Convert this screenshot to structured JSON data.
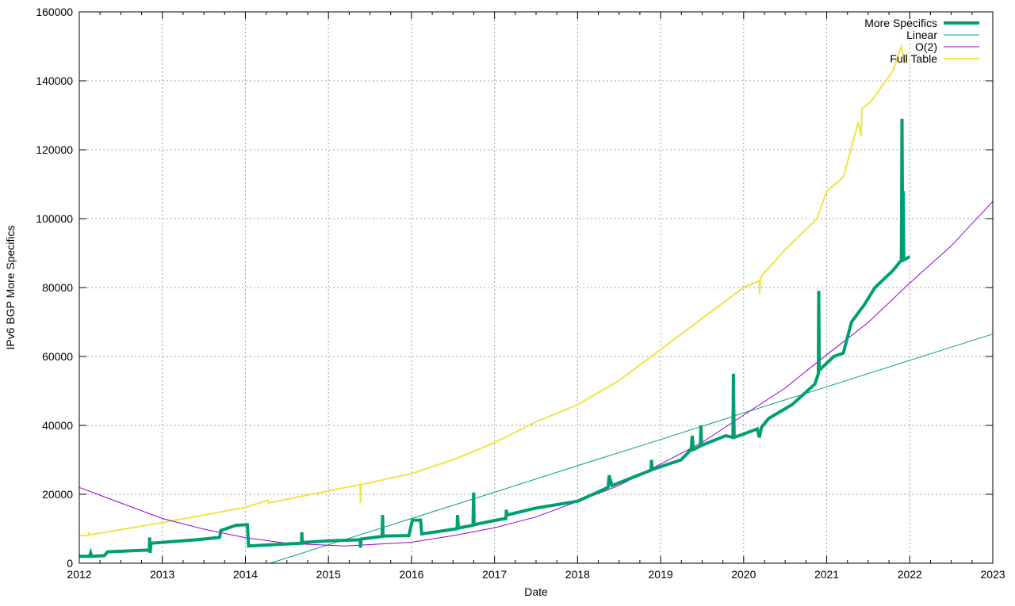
{
  "chart_data": {
    "type": "line",
    "title": "",
    "xlabel": "Date",
    "ylabel": "IPv6 BGP More Specifics",
    "xlim": [
      "2012-01-01",
      "2023-01-01"
    ],
    "ylim": [
      0,
      160000
    ],
    "x_ticks": [
      "2012",
      "2013",
      "2014",
      "2015",
      "2016",
      "2017",
      "2018",
      "2019",
      "2020",
      "2021",
      "2022",
      "2023"
    ],
    "y_ticks": [
      0,
      20000,
      40000,
      60000,
      80000,
      100000,
      120000,
      140000,
      160000
    ],
    "grid": true,
    "legend_position": "top-right",
    "series": [
      {
        "name": "More Specifics",
        "color": "#009e73",
        "style": "thick",
        "points": [
          [
            "2012-01-01",
            2000
          ],
          [
            "2012-02-15",
            2000
          ],
          [
            "2012-02-20",
            3000
          ],
          [
            "2012-02-25",
            2000
          ],
          [
            "2012-04-20",
            2200
          ],
          [
            "2012-05-05",
            3300
          ],
          [
            "2012-10-20",
            3800
          ],
          [
            "2012-11-05",
            3800
          ],
          [
            "2012-11-06",
            7500
          ],
          [
            "2012-11-08",
            3000
          ],
          [
            "2012-11-12",
            5800
          ],
          [
            "2013-06-01",
            6800
          ],
          [
            "2013-09-10",
            7500
          ],
          [
            "2013-09-15",
            9500
          ],
          [
            "2013-11-20",
            11000
          ],
          [
            "2014-01-10",
            11200
          ],
          [
            "2014-01-15",
            5000
          ],
          [
            "2014-06-01",
            5500
          ],
          [
            "2014-09-05",
            5800
          ],
          [
            "2014-09-06",
            9000
          ],
          [
            "2014-09-08",
            6000
          ],
          [
            "2015-01-01",
            6500
          ],
          [
            "2015-05-20",
            6800
          ],
          [
            "2015-05-22",
            4500
          ],
          [
            "2015-05-25",
            7000
          ],
          [
            "2015-08-25",
            7800
          ],
          [
            "2015-08-27",
            14000
          ],
          [
            "2015-08-29",
            7900
          ],
          [
            "2015-12-20",
            8000
          ],
          [
            "2016-01-05",
            12500
          ],
          [
            "2016-02-10",
            12500
          ],
          [
            "2016-02-15",
            8500
          ],
          [
            "2016-07-20",
            10000
          ],
          [
            "2016-07-22",
            14000
          ],
          [
            "2016-07-26",
            10200
          ],
          [
            "2016-09-28",
            11000
          ],
          [
            "2016-10-01",
            20500
          ],
          [
            "2016-10-03",
            11200
          ],
          [
            "2017-01-10",
            12500
          ],
          [
            "2017-02-20",
            13000
          ],
          [
            "2017-02-22",
            15500
          ],
          [
            "2017-02-25",
            14000
          ],
          [
            "2017-07-01",
            16000
          ],
          [
            "2018-01-01",
            18000
          ],
          [
            "2018-05-15",
            22000
          ],
          [
            "2018-05-20",
            25500
          ],
          [
            "2018-06-01",
            22500
          ],
          [
            "2018-11-20",
            27000
          ],
          [
            "2018-11-22",
            30000
          ],
          [
            "2018-11-25",
            27200
          ],
          [
            "2019-04-01",
            30000
          ],
          [
            "2019-05-15",
            33000
          ],
          [
            "2019-05-20",
            37000
          ],
          [
            "2019-05-25",
            33000
          ],
          [
            "2019-06-25",
            34000
          ],
          [
            "2019-06-27",
            40000
          ],
          [
            "2019-06-30",
            34200
          ],
          [
            "2019-10-15",
            37000
          ],
          [
            "2019-11-15",
            36500
          ],
          [
            "2019-11-17",
            55000
          ],
          [
            "2019-11-20",
            36500
          ],
          [
            "2020-01-01",
            37500
          ],
          [
            "2020-03-01",
            39000
          ],
          [
            "2020-03-10",
            36500
          ],
          [
            "2020-03-20",
            39500
          ],
          [
            "2020-04-20",
            42000
          ],
          [
            "2020-08-01",
            46000
          ],
          [
            "2020-11-10",
            52000
          ],
          [
            "2020-11-25",
            55000
          ],
          [
            "2020-11-27",
            79000
          ],
          [
            "2020-11-29",
            56000
          ],
          [
            "2021-02-01",
            60000
          ],
          [
            "2021-03-15",
            61000
          ],
          [
            "2021-04-20",
            70000
          ],
          [
            "2021-06-15",
            75000
          ],
          [
            "2021-08-01",
            80000
          ],
          [
            "2021-10-20",
            85000
          ],
          [
            "2021-11-25",
            88000
          ],
          [
            "2021-11-28",
            129000
          ],
          [
            "2021-12-01",
            88500
          ],
          [
            "2021-12-03",
            108000
          ],
          [
            "2021-12-06",
            88000
          ],
          [
            "2022-01-01",
            89000
          ]
        ]
      },
      {
        "name": "Linear",
        "color": "#009e73",
        "style": "thin",
        "points": [
          [
            "2014-04-20",
            0
          ],
          [
            "2015-01-01",
            5350
          ],
          [
            "2016-01-01",
            13000
          ],
          [
            "2017-01-01",
            20600
          ],
          [
            "2018-01-01",
            28300
          ],
          [
            "2019-01-01",
            35900
          ],
          [
            "2020-01-01",
            43600
          ],
          [
            "2021-01-01",
            51200
          ],
          [
            "2022-01-01",
            58900
          ],
          [
            "2023-01-01",
            66500
          ]
        ]
      },
      {
        "name": "O(2)",
        "color": "#9400d3",
        "style": "thin",
        "points": [
          [
            "2012-01-01",
            22000
          ],
          [
            "2012-07-01",
            17500
          ],
          [
            "2013-01-01",
            13000
          ],
          [
            "2013-07-01",
            9900
          ],
          [
            "2014-01-01",
            7400
          ],
          [
            "2014-07-01",
            5800
          ],
          [
            "2015-03-15",
            5000
          ],
          [
            "2016-01-01",
            6100
          ],
          [
            "2016-07-01",
            8000
          ],
          [
            "2017-01-01",
            10300
          ],
          [
            "2017-07-01",
            13400
          ],
          [
            "2018-01-01",
            17900
          ],
          [
            "2018-07-01",
            22500
          ],
          [
            "2019-01-01",
            28800
          ],
          [
            "2019-07-01",
            35000
          ],
          [
            "2020-01-01",
            43000
          ],
          [
            "2020-07-01",
            50800
          ],
          [
            "2021-01-01",
            60500
          ],
          [
            "2021-07-01",
            69800
          ],
          [
            "2022-01-01",
            81300
          ],
          [
            "2022-07-01",
            92000
          ],
          [
            "2023-01-01",
            105000
          ]
        ]
      },
      {
        "name": "Full Table",
        "color": "#f0e442",
        "style": "thin",
        "points": [
          [
            "2012-01-01",
            8000
          ],
          [
            "2012-02-10",
            8100
          ],
          [
            "2012-02-12",
            9000
          ],
          [
            "2012-02-15",
            8200
          ],
          [
            "2013-01-01",
            11800
          ],
          [
            "2014-01-01",
            16200
          ],
          [
            "2014-04-10",
            18300
          ],
          [
            "2014-04-12",
            17500
          ],
          [
            "2015-01-01",
            21000
          ],
          [
            "2015-05-20",
            22800
          ],
          [
            "2015-05-22",
            17500
          ],
          [
            "2015-05-24",
            22800
          ],
          [
            "2016-01-01",
            26000
          ],
          [
            "2016-07-01",
            30000
          ],
          [
            "2017-01-01",
            35000
          ],
          [
            "2017-07-01",
            41000
          ],
          [
            "2018-01-01",
            46000
          ],
          [
            "2018-07-01",
            53000
          ],
          [
            "2019-01-01",
            62000
          ],
          [
            "2019-07-01",
            71000
          ],
          [
            "2020-01-01",
            80000
          ],
          [
            "2020-03-10",
            82000
          ],
          [
            "2020-03-12",
            78000
          ],
          [
            "2020-03-15",
            83000
          ],
          [
            "2020-07-01",
            91000
          ],
          [
            "2020-11-20",
            100000
          ],
          [
            "2021-01-01",
            108000
          ],
          [
            "2021-03-15",
            112000
          ],
          [
            "2021-05-20",
            128000
          ],
          [
            "2021-06-01",
            124000
          ],
          [
            "2021-06-05",
            132000
          ],
          [
            "2021-07-15",
            134000
          ],
          [
            "2021-10-20",
            143000
          ],
          [
            "2021-11-25",
            150000
          ],
          [
            "2021-12-10",
            145000
          ],
          [
            "2021-12-20",
            148000
          ]
        ]
      }
    ]
  }
}
